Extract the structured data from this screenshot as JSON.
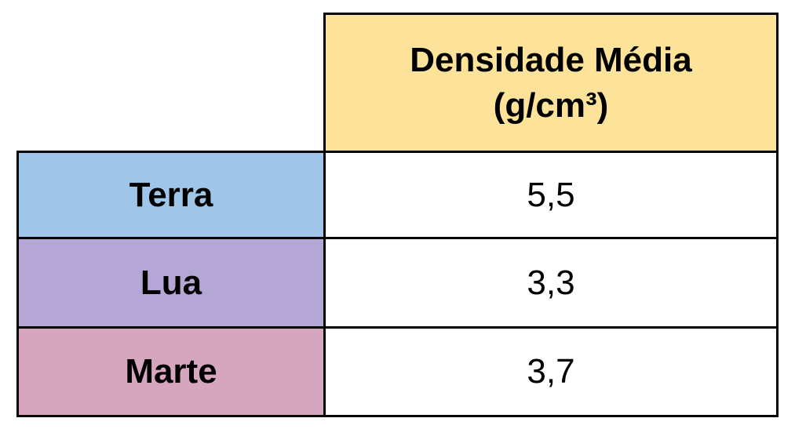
{
  "table": {
    "header": {
      "lines": [
        "Densidade Média",
        "(g/cm³)"
      ]
    },
    "rows": [
      [
        "Terra",
        "5,5"
      ],
      [
        "Lua",
        "3,3"
      ],
      [
        "Marte",
        "3,7"
      ]
    ]
  }
}
